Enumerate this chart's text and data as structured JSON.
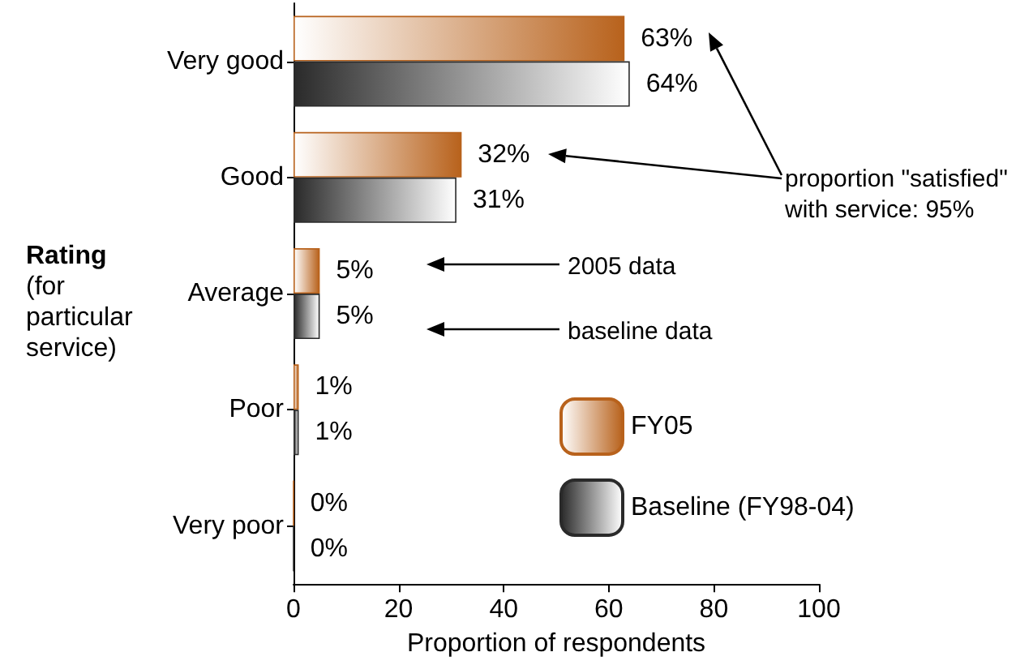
{
  "chart_data": {
    "type": "bar",
    "orientation": "horizontal",
    "ylabel": "Rating\n(for\nparticular\nservice)",
    "xlabel": "Proportion of respondents",
    "categories": [
      "Very good",
      "Good",
      "Average",
      "Poor",
      "Very poor"
    ],
    "series": [
      {
        "name": "FY05",
        "color": "#b8621c",
        "values": [
          63,
          32,
          5,
          1,
          0
        ],
        "value_labels": [
          "63%",
          "32%",
          "5%",
          "1%",
          "0%"
        ]
      },
      {
        "name": "Baseline (FY98-04)",
        "color": "#2a2a2a",
        "values": [
          64,
          31,
          5,
          1,
          0
        ],
        "value_labels": [
          "64%",
          "31%",
          "5%",
          "1%",
          "0%"
        ]
      }
    ],
    "xlim": [
      0,
      100
    ],
    "xticks": [
      0,
      20,
      40,
      60,
      80,
      100
    ],
    "grid": false,
    "legend": "right",
    "annotations": [
      "proportion \"satisfied\"\nwith service: 95%",
      "2005 data",
      "baseline data"
    ]
  }
}
